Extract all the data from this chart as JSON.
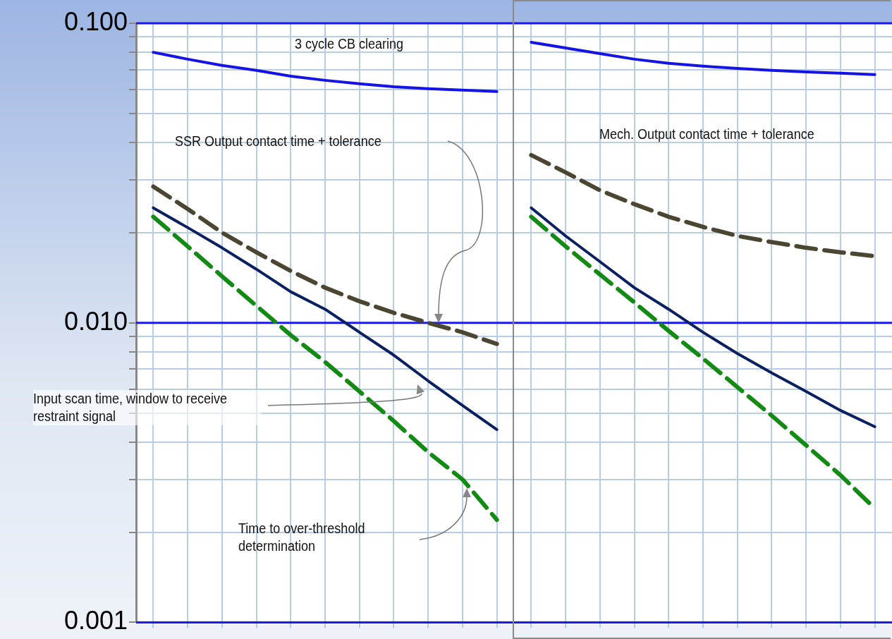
{
  "chart_data": {
    "type": "line",
    "categories": [
      null,
      null,
      null,
      null,
      null,
      null,
      null,
      null,
      null,
      null,
      null,
      null,
      null,
      null,
      null,
      null,
      null,
      null,
      null,
      null,
      null,
      null
    ],
    "series": [
      {
        "color": "#1414e6",
        "values": [
          0.08,
          0.0759,
          0.0723,
          0.0696,
          0.0666,
          0.0645,
          0.0628,
          0.0614,
          0.0605,
          0.0598,
          0.0592,
          null,
          null,
          null,
          null,
          null,
          null,
          null,
          null,
          null,
          null,
          null
        ]
      },
      {
        "color": "#4a4632",
        "line_style": "dashed",
        "values": [
          0.0285,
          0.024,
          0.02,
          0.0172,
          0.0149,
          0.0131,
          0.0118,
          0.0108,
          0.01,
          0.0093,
          0.0085,
          null,
          null,
          null,
          null,
          null,
          null,
          null,
          null,
          null,
          null,
          null
        ]
      },
      {
        "color": "#0a2060",
        "values": [
          0.0242,
          0.0208,
          0.0178,
          0.0151,
          0.0127,
          0.0111,
          0.0093,
          0.0078,
          0.0064,
          0.0053,
          0.0044,
          null,
          null,
          null,
          null,
          null,
          null,
          null,
          null,
          null,
          null,
          null
        ]
      },
      {
        "color": "#138a13",
        "line_style": "dashed",
        "values": [
          0.0226,
          0.018,
          0.0143,
          0.0114,
          0.0091,
          0.0074,
          0.0059,
          0.0047,
          0.0037,
          0.003,
          0.0022,
          null,
          null,
          null,
          null,
          null,
          null,
          null,
          null,
          null,
          null,
          null
        ]
      },
      {
        "color": "#1414e6",
        "values": [
          null,
          null,
          null,
          null,
          null,
          null,
          null,
          null,
          null,
          null,
          null,
          0.0864,
          0.0827,
          0.0792,
          0.0759,
          0.0735,
          0.0719,
          0.0707,
          0.0696,
          0.0688,
          0.0681,
          0.0674
        ]
      },
      {
        "color": "#4a4632",
        "line_style": "dashed",
        "values": [
          null,
          null,
          null,
          null,
          null,
          null,
          null,
          null,
          null,
          null,
          null,
          0.0363,
          0.0318,
          0.0277,
          0.0249,
          0.0226,
          0.0209,
          0.0195,
          0.0186,
          0.0178,
          0.0172,
          0.0167
        ]
      },
      {
        "color": "#0a2060",
        "values": [
          null,
          null,
          null,
          null,
          null,
          null,
          null,
          null,
          null,
          null,
          null,
          0.0242,
          0.0195,
          0.016,
          0.0131,
          0.0111,
          0.0093,
          0.0079,
          0.0068,
          0.0059,
          0.0051,
          0.0045
        ]
      },
      {
        "color": "#138a13",
        "line_style": "dashed",
        "values": [
          null,
          null,
          null,
          null,
          null,
          null,
          null,
          null,
          null,
          null,
          null,
          0.0226,
          0.018,
          0.0145,
          0.0117,
          0.0094,
          0.0076,
          0.0061,
          0.0049,
          0.0039,
          0.0031,
          0.0024
        ]
      }
    ],
    "log": "y",
    "ylim": [
      0.001,
      0.1
    ],
    "yticks": [
      {
        "value": 0.001,
        "label": "0.001"
      },
      {
        "value": 0.002,
        "label": null
      },
      {
        "value": 0.003,
        "label": null
      },
      {
        "value": 0.004,
        "label": null
      },
      {
        "value": 0.005,
        "label": null
      },
      {
        "value": 0.006,
        "label": null
      },
      {
        "value": 0.007,
        "label": null
      },
      {
        "value": 0.008,
        "label": null
      },
      {
        "value": 0.009,
        "label": null
      },
      {
        "value": 0.01,
        "label": "0.010"
      },
      {
        "value": 0.02,
        "label": null
      },
      {
        "value": 0.03,
        "label": null
      },
      {
        "value": 0.04,
        "label": null
      },
      {
        "value": 0.05,
        "label": null
      },
      {
        "value": 0.06,
        "label": null
      },
      {
        "value": 0.07,
        "label": null
      },
      {
        "value": 0.08,
        "label": null
      },
      {
        "value": 0.09,
        "label": null
      },
      {
        "value": 0.1,
        "label": "0.100"
      }
    ],
    "grid": true,
    "tick_labels": "y",
    "legend": false,
    "ref_lines": [
      {
        "axis": "y",
        "value": 0.1,
        "color": "#1a1aee"
      },
      {
        "axis": "y",
        "value": 0.01,
        "color": "#1a1aee"
      },
      {
        "axis": "y",
        "value": 0.001,
        "color": "#1a1aee"
      }
    ],
    "annotations": [
      "3 cycle CB clearing",
      "SSR Output contact time + tolerance",
      "Input scan time, window to receive restraint signal",
      "Time to over-threshold determination",
      "Mech. Output contact time + tolerance"
    ]
  }
}
